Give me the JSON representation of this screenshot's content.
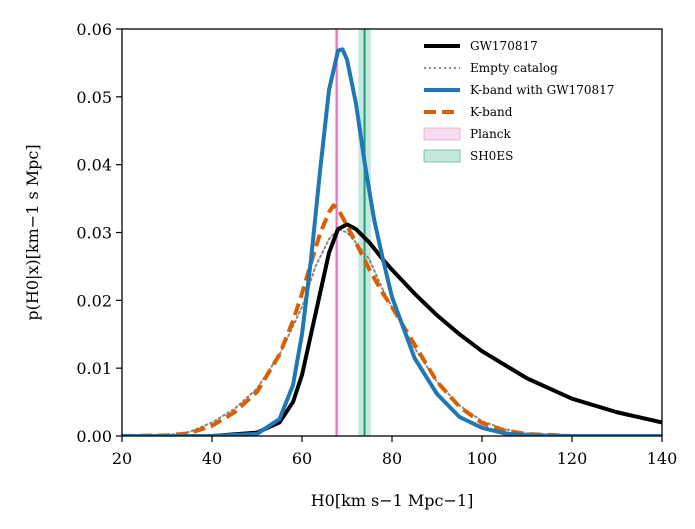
{
  "chart_data": {
    "type": "line",
    "title": "",
    "xlabel": "H0[km s−1 Mpc−1]",
    "ylabel": "p(H0|x)[km−1 s Mpc]",
    "xlim": [
      20,
      140
    ],
    "ylim": [
      0,
      0.06
    ],
    "grid": false,
    "legend_position": "top-right",
    "x_ticks": [
      "20",
      "40",
      "60",
      "80",
      "100",
      "120",
      "140"
    ],
    "y_ticks": [
      "0.00",
      "0.01",
      "0.02",
      "0.03",
      "0.04",
      "0.05",
      "0.06"
    ],
    "series": [
      {
        "name": "GW170817",
        "color": "#000000",
        "style": "solid",
        "x": [
          20,
          40,
          50,
          55,
          58,
          60,
          62,
          64,
          66,
          68,
          70,
          72,
          75,
          78,
          80,
          85,
          90,
          95,
          100,
          110,
          120,
          130,
          140
        ],
        "y": [
          0,
          0,
          0.0005,
          0.002,
          0.005,
          0.009,
          0.015,
          0.021,
          0.027,
          0.0305,
          0.0312,
          0.0305,
          0.0285,
          0.026,
          0.0245,
          0.021,
          0.0178,
          0.015,
          0.0125,
          0.0085,
          0.0055,
          0.0035,
          0.002
        ]
      },
      {
        "name": "Empty catalog",
        "color": "#888888",
        "style": "dotted",
        "x": [
          20,
          30,
          35,
          40,
          45,
          50,
          55,
          60,
          63,
          66,
          68,
          70,
          72,
          75,
          78,
          80,
          85,
          90,
          95,
          100,
          105,
          110,
          115,
          120,
          130,
          140
        ],
        "y": [
          0,
          0.0001,
          0.0006,
          0.002,
          0.004,
          0.007,
          0.012,
          0.019,
          0.025,
          0.029,
          0.0305,
          0.03,
          0.0285,
          0.026,
          0.0215,
          0.019,
          0.013,
          0.008,
          0.0045,
          0.0022,
          0.001,
          0.0004,
          0.0002,
          0.0001,
          0,
          0
        ]
      },
      {
        "name": "K-band with GW170817",
        "color": "#1f77b4",
        "style": "solid",
        "x": [
          20,
          40,
          50,
          55,
          58,
          60,
          62,
          64,
          66,
          68,
          69,
          70,
          72,
          74,
          76,
          78,
          80,
          85,
          90,
          95,
          100,
          105,
          110,
          120,
          140
        ],
        "y": [
          0,
          0,
          0.0003,
          0.0025,
          0.0075,
          0.015,
          0.026,
          0.039,
          0.051,
          0.0568,
          0.057,
          0.0555,
          0.049,
          0.04,
          0.032,
          0.026,
          0.0205,
          0.0115,
          0.0062,
          0.0028,
          0.0012,
          0.0004,
          0.0001,
          0,
          0
        ]
      },
      {
        "name": "K-band",
        "color": "#d95f02",
        "style": "dashed",
        "x": [
          20,
          30,
          35,
          40,
          45,
          50,
          55,
          58,
          60,
          62,
          64,
          66,
          67,
          68,
          70,
          72,
          75,
          78,
          80,
          85,
          90,
          95,
          100,
          105,
          110,
          120,
          140
        ],
        "y": [
          0,
          0.0001,
          0.0004,
          0.0015,
          0.0035,
          0.0065,
          0.012,
          0.017,
          0.021,
          0.0255,
          0.0298,
          0.033,
          0.034,
          0.0335,
          0.031,
          0.0285,
          0.0245,
          0.021,
          0.019,
          0.0135,
          0.008,
          0.0043,
          0.0019,
          0.0008,
          0.0003,
          0,
          0
        ]
      }
    ],
    "bands": [
      {
        "name": "Planck",
        "center": 67.7,
        "low": 67.3,
        "high": 68.1,
        "color": "#e377c2"
      },
      {
        "name": "SH0ES",
        "center": 73.9,
        "low": 72.5,
        "high": 75.3,
        "color": "#1b9e77"
      }
    ]
  }
}
